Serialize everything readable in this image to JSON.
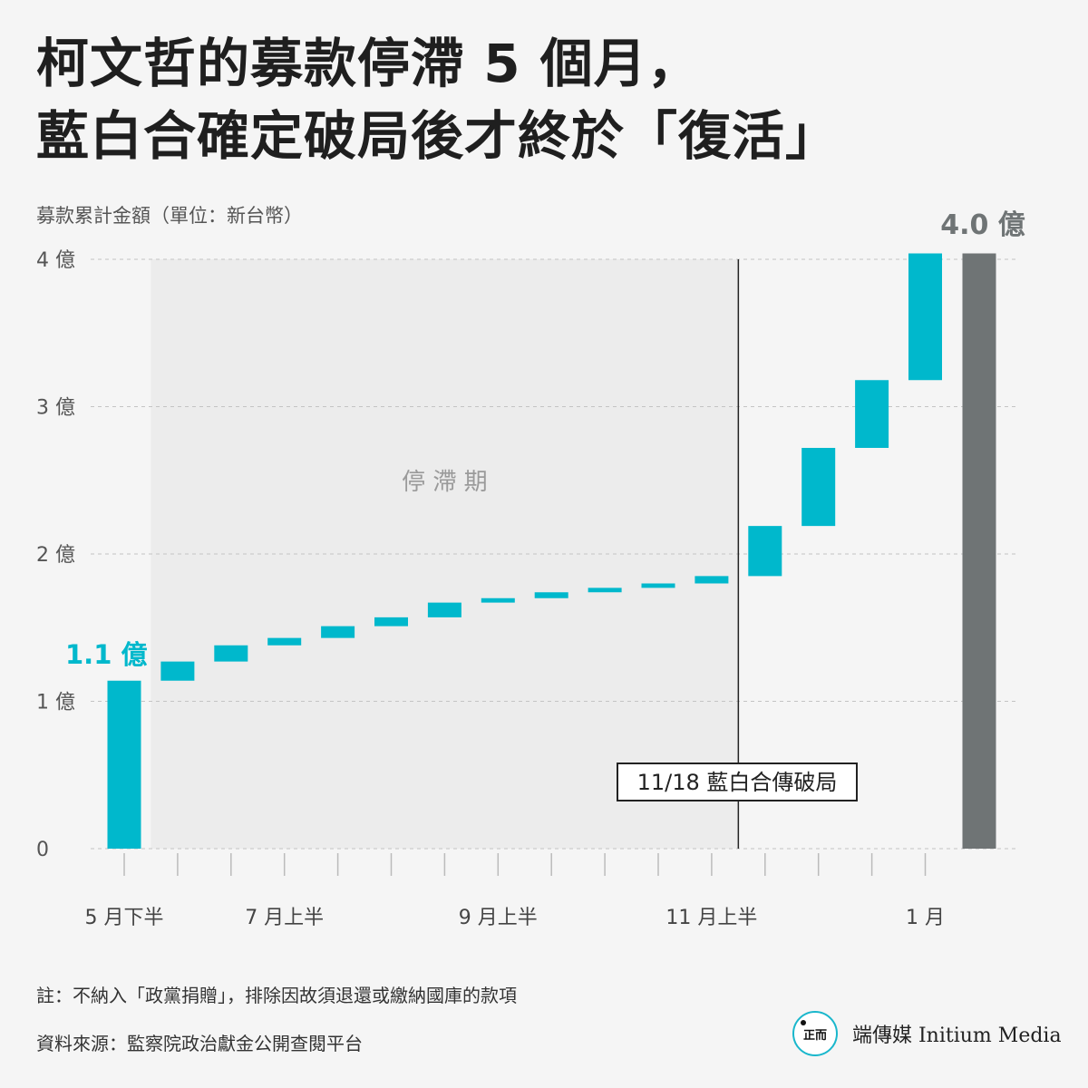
{
  "header": {
    "title_line1": "柯文哲的募款停滯 5 個月，",
    "title_line2": "藍白合確定破局後才終於「復活」",
    "subtitle": "募款累計金額（單位：新台幣）"
  },
  "chart_data": {
    "type": "waterfall",
    "ylim": [
      0,
      4
    ],
    "yticks": [
      {
        "value": 0,
        "label": "0"
      },
      {
        "value": 1,
        "label": "1 億"
      },
      {
        "value": 2,
        "label": "2 億"
      },
      {
        "value": 3,
        "label": "3 億"
      },
      {
        "value": 4,
        "label": "4 億"
      }
    ],
    "xtick_labels": [
      {
        "index": 0,
        "label": "5 月下半"
      },
      {
        "index": 3,
        "label": "7 月上半"
      },
      {
        "index": 7,
        "label": "9 月上半"
      },
      {
        "index": 11,
        "label": "11 月上半"
      },
      {
        "index": 15,
        "label": "1 月"
      }
    ],
    "period_count": 16,
    "steps": [
      {
        "start": 0.0,
        "end": 1.14
      },
      {
        "start": 1.14,
        "end": 1.27
      },
      {
        "start": 1.27,
        "end": 1.38
      },
      {
        "start": 1.38,
        "end": 1.43
      },
      {
        "start": 1.43,
        "end": 1.51
      },
      {
        "start": 1.51,
        "end": 1.57
      },
      {
        "start": 1.57,
        "end": 1.67
      },
      {
        "start": 1.67,
        "end": 1.7
      },
      {
        "start": 1.7,
        "end": 1.74
      },
      {
        "start": 1.74,
        "end": 1.77
      },
      {
        "start": 1.77,
        "end": 1.8
      },
      {
        "start": 1.8,
        "end": 1.85
      },
      {
        "start": 1.85,
        "end": 2.19
      },
      {
        "start": 2.19,
        "end": 2.72
      },
      {
        "start": 2.72,
        "end": 3.18
      },
      {
        "start": 3.18,
        "end": 4.04
      }
    ],
    "total": {
      "value": 4.04,
      "label": "4.0 億"
    },
    "start_label": "1.1 億",
    "stagnation": {
      "from_index": 0.5,
      "to_index": 11.5,
      "label": "停 滯 期"
    },
    "event": {
      "index": 11.5,
      "label": "11/18 藍白合傳破局"
    },
    "colors": {
      "step": "#00b8cc",
      "total": "#6f7475",
      "shade": "#ececec",
      "grid": "#c4c4c4",
      "start_label": "#00b8cc",
      "total_label": "#6f7475"
    }
  },
  "footer": {
    "note": "註：不納入「政黨捐贈」，排除因故須退還或繳納國庫的款項",
    "source": "資料來源：監察院政治獻金公開查閱平台"
  },
  "logo": {
    "mark": "正而",
    "text": "端傳媒 Initium Media"
  }
}
